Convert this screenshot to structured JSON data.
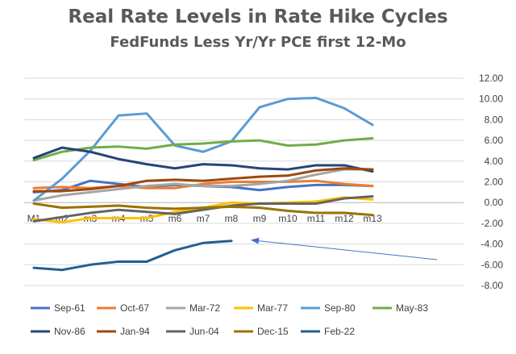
{
  "chart_data": {
    "type": "line",
    "title": "Real Rate Levels in Rate Hike Cycles",
    "subtitle": "FedFunds Less Yr/Yr PCE first 12-Mo",
    "xlabel": "",
    "ylabel": "",
    "categories": [
      "M1",
      "m2",
      "m3",
      "m4",
      "m5",
      "m6",
      "m7",
      "m8",
      "m9",
      "m10",
      "m11",
      "m12",
      "m13"
    ],
    "ylim": [
      -8,
      12
    ],
    "yticks": [
      -8,
      -6,
      -4,
      -2,
      0,
      2,
      4,
      6,
      8,
      10,
      12
    ],
    "ytick_labels": [
      "-8.00",
      "-6.00",
      "-4.00",
      "-2.00",
      "0.00",
      "2.00",
      "4.00",
      "6.00",
      "8.00",
      "10.00",
      "12.00"
    ],
    "grid": "horizontal",
    "legend_position": "bottom",
    "series": [
      {
        "name": "Sep-61",
        "color": "#4472C4",
        "values": [
          1.0,
          1.2,
          2.1,
          1.8,
          1.5,
          1.7,
          1.6,
          1.5,
          1.2,
          1.5,
          1.7,
          1.7,
          1.6
        ]
      },
      {
        "name": "Oct-67",
        "color": "#ED7D31",
        "values": [
          1.4,
          1.5,
          1.4,
          1.6,
          1.4,
          1.4,
          1.8,
          2.0,
          2.0,
          2.0,
          2.1,
          1.8,
          1.6
        ]
      },
      {
        "name": "Mar-72",
        "color": "#A5A5A5",
        "values": [
          0.2,
          0.7,
          1.0,
          1.3,
          1.6,
          1.8,
          1.6,
          1.6,
          1.8,
          2.1,
          2.7,
          3.2,
          3.2
        ]
      },
      {
        "name": "Mar-77",
        "color": "#FFC000",
        "values": [
          -1.6,
          -1.9,
          -1.5,
          -1.5,
          -1.5,
          -0.9,
          -0.5,
          0.0,
          -0.1,
          0.0,
          0.1,
          0.5,
          0.3
        ]
      },
      {
        "name": "Sep-80",
        "color": "#5B9BD5",
        "values": [
          0.2,
          2.3,
          5.0,
          8.4,
          8.6,
          5.5,
          4.9,
          5.9,
          9.2,
          10.0,
          10.1,
          9.1,
          7.5
        ]
      },
      {
        "name": "May-83",
        "color": "#70AD47",
        "values": [
          4.1,
          4.9,
          5.3,
          5.4,
          5.2,
          5.6,
          5.7,
          5.9,
          6.0,
          5.5,
          5.6,
          6.0,
          6.2
        ]
      },
      {
        "name": "Nov-86",
        "color": "#264478",
        "values": [
          4.3,
          5.3,
          4.9,
          4.2,
          3.7,
          3.3,
          3.7,
          3.6,
          3.3,
          3.2,
          3.6,
          3.6,
          3.0
        ]
      },
      {
        "name": "Jan-94",
        "color": "#9E480E",
        "values": [
          1.1,
          1.1,
          1.3,
          1.6,
          2.1,
          2.2,
          2.1,
          2.3,
          2.5,
          2.6,
          3.1,
          3.3,
          3.2
        ]
      },
      {
        "name": "Jun-04",
        "color": "#636363",
        "values": [
          -1.8,
          -1.4,
          -1.0,
          -0.7,
          -0.9,
          -1.1,
          -0.7,
          -0.3,
          -0.1,
          -0.1,
          -0.1,
          0.4,
          0.6
        ]
      },
      {
        "name": "Dec-15",
        "color": "#997300",
        "values": [
          -0.1,
          -0.5,
          -0.4,
          -0.3,
          -0.5,
          -0.6,
          -0.5,
          -0.4,
          -0.5,
          -0.8,
          -1.0,
          -1.0,
          -1.2
        ]
      },
      {
        "name": "Feb-22",
        "color": "#255E91",
        "values": [
          -6.3,
          -6.5,
          -6.0,
          -5.7,
          -5.7,
          -4.6,
          -3.9,
          -3.7,
          null,
          null,
          null,
          null,
          null
        ]
      }
    ],
    "annotations": [
      {
        "type": "arrow",
        "direction": "pointing-left",
        "target_series": "Feb-22",
        "target_point": "m8"
      }
    ]
  }
}
